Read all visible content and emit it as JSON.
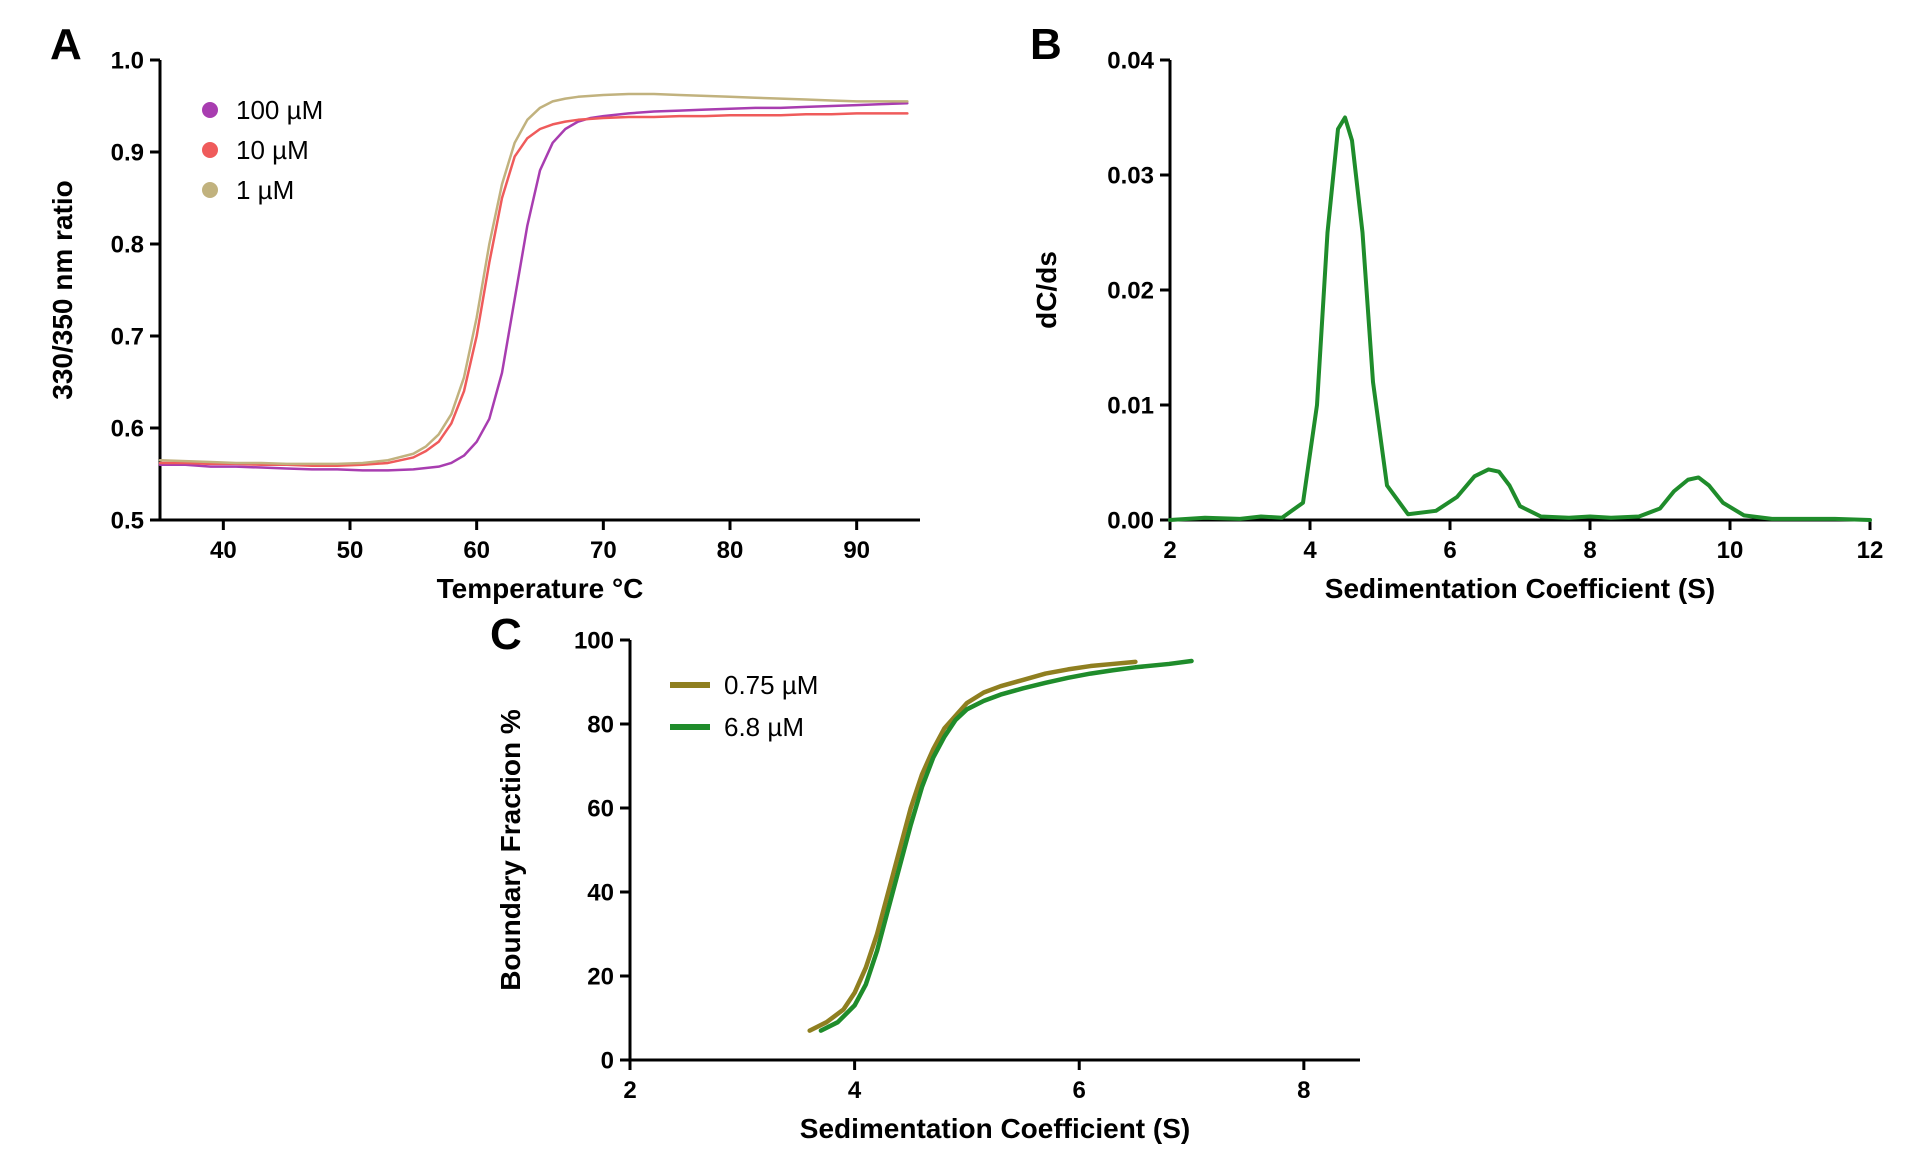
{
  "panelA": {
    "label": "A",
    "type": "line",
    "xlabel": "Temperature °C",
    "ylabel": "330/350 nm ratio",
    "label_fontsize": 28,
    "tick_fontsize": 24,
    "xlim": [
      35,
      95
    ],
    "ylim": [
      0.5,
      1.0
    ],
    "xticks": [
      40,
      50,
      60,
      70,
      80,
      90
    ],
    "yticks": [
      0.5,
      0.6,
      0.7,
      0.8,
      0.9,
      1.0
    ],
    "background_color": "#ffffff",
    "axis_color": "#000000",
    "line_width": 2.5,
    "legend": {
      "items": [
        {
          "label": "100 µM",
          "color": "#a83db0"
        },
        {
          "label": "10 µM",
          "color": "#ef5b5b"
        },
        {
          "label": "1 µM",
          "color": "#c1b27e"
        }
      ],
      "marker": "dot",
      "marker_size": 8,
      "fontsize": 26
    },
    "series": [
      {
        "name": "100 µM",
        "color": "#a83db0",
        "x": [
          35,
          37,
          39,
          41,
          43,
          45,
          47,
          49,
          51,
          53,
          55,
          57,
          58,
          59,
          60,
          61,
          62,
          63,
          64,
          65,
          66,
          67,
          68,
          69,
          70,
          72,
          74,
          76,
          78,
          80,
          82,
          84,
          86,
          88,
          90,
          92,
          94
        ],
        "y": [
          0.56,
          0.56,
          0.558,
          0.558,
          0.557,
          0.556,
          0.555,
          0.555,
          0.554,
          0.554,
          0.555,
          0.558,
          0.562,
          0.57,
          0.585,
          0.61,
          0.66,
          0.74,
          0.82,
          0.88,
          0.91,
          0.925,
          0.933,
          0.937,
          0.939,
          0.942,
          0.944,
          0.945,
          0.946,
          0.947,
          0.948,
          0.948,
          0.949,
          0.95,
          0.951,
          0.952,
          0.953
        ]
      },
      {
        "name": "10 µM",
        "color": "#ef5b5b",
        "x": [
          35,
          37,
          39,
          41,
          43,
          45,
          47,
          49,
          51,
          53,
          55,
          56,
          57,
          58,
          59,
          60,
          61,
          62,
          63,
          64,
          65,
          66,
          67,
          68,
          69,
          70,
          72,
          74,
          76,
          78,
          80,
          82,
          84,
          86,
          88,
          90,
          92,
          94
        ],
        "y": [
          0.562,
          0.562,
          0.561,
          0.561,
          0.56,
          0.56,
          0.559,
          0.559,
          0.56,
          0.562,
          0.568,
          0.575,
          0.585,
          0.605,
          0.64,
          0.7,
          0.78,
          0.85,
          0.895,
          0.915,
          0.925,
          0.93,
          0.933,
          0.935,
          0.936,
          0.937,
          0.938,
          0.938,
          0.939,
          0.939,
          0.94,
          0.94,
          0.94,
          0.941,
          0.941,
          0.942,
          0.942,
          0.942
        ]
      },
      {
        "name": "1 µM",
        "color": "#c1b27e",
        "x": [
          35,
          37,
          39,
          41,
          43,
          45,
          47,
          49,
          51,
          53,
          55,
          56,
          57,
          58,
          59,
          60,
          61,
          62,
          63,
          64,
          65,
          66,
          67,
          68,
          69,
          70,
          72,
          74,
          76,
          78,
          80,
          82,
          84,
          86,
          88,
          90,
          92,
          94
        ],
        "y": [
          0.565,
          0.564,
          0.563,
          0.562,
          0.562,
          0.561,
          0.561,
          0.561,
          0.562,
          0.565,
          0.572,
          0.58,
          0.593,
          0.615,
          0.655,
          0.72,
          0.8,
          0.865,
          0.91,
          0.935,
          0.948,
          0.955,
          0.958,
          0.96,
          0.961,
          0.962,
          0.963,
          0.963,
          0.962,
          0.961,
          0.96,
          0.959,
          0.958,
          0.957,
          0.956,
          0.955,
          0.955,
          0.955
        ]
      }
    ]
  },
  "panelB": {
    "label": "B",
    "type": "line",
    "xlabel": "Sedimentation Coefficient (S)",
    "ylabel": "dC/ds",
    "label_fontsize": 28,
    "tick_fontsize": 24,
    "xlim": [
      2,
      12
    ],
    "ylim": [
      0.0,
      0.04
    ],
    "xticks": [
      2,
      4,
      6,
      8,
      10,
      12
    ],
    "yticks": [
      0.0,
      0.01,
      0.02,
      0.03,
      0.04
    ],
    "background_color": "#ffffff",
    "axis_color": "#000000",
    "line_width": 4,
    "series": [
      {
        "name": "dcds",
        "color": "#1f8c2b",
        "x": [
          2.0,
          2.5,
          3.0,
          3.3,
          3.6,
          3.9,
          4.1,
          4.25,
          4.4,
          4.5,
          4.6,
          4.75,
          4.9,
          5.1,
          5.4,
          5.8,
          6.1,
          6.35,
          6.55,
          6.7,
          6.85,
          7.0,
          7.3,
          7.7,
          8.0,
          8.3,
          8.7,
          9.0,
          9.2,
          9.4,
          9.55,
          9.7,
          9.9,
          10.2,
          10.6,
          11.0,
          11.5,
          12.0
        ],
        "y": [
          0.0,
          0.0002,
          0.0001,
          0.0003,
          0.0002,
          0.0015,
          0.01,
          0.025,
          0.034,
          0.035,
          0.033,
          0.025,
          0.012,
          0.003,
          0.0005,
          0.0008,
          0.002,
          0.0038,
          0.0044,
          0.0042,
          0.003,
          0.0012,
          0.0003,
          0.0002,
          0.0003,
          0.0002,
          0.0003,
          0.001,
          0.0025,
          0.0035,
          0.0037,
          0.003,
          0.0015,
          0.0004,
          0.0001,
          0.0001,
          0.0001,
          0.0
        ]
      }
    ]
  },
  "panelC": {
    "label": "C",
    "type": "line",
    "xlabel": "Sedimentation Coefficient (S)",
    "ylabel": "Boundary Fraction %",
    "label_fontsize": 28,
    "tick_fontsize": 24,
    "xlim": [
      2,
      8.5
    ],
    "ylim": [
      0,
      100
    ],
    "xticks": [
      2,
      4,
      6,
      8
    ],
    "yticks": [
      0,
      20,
      40,
      60,
      80,
      100
    ],
    "background_color": "#ffffff",
    "axis_color": "#000000",
    "line_width": 4.5,
    "legend": {
      "items": [
        {
          "label": "0.75 µM",
          "color": "#8f7f20"
        },
        {
          "label": "6.8 µM",
          "color": "#1f8c2b"
        }
      ],
      "marker": "line",
      "marker_size": 40,
      "fontsize": 26
    },
    "series": [
      {
        "name": "0.75 µM",
        "color": "#8f7f20",
        "x": [
          3.6,
          3.75,
          3.9,
          4.0,
          4.1,
          4.2,
          4.3,
          4.4,
          4.5,
          4.6,
          4.7,
          4.8,
          4.9,
          5.0,
          5.15,
          5.3,
          5.5,
          5.7,
          5.9,
          6.1,
          6.3,
          6.5
        ],
        "y": [
          7,
          9,
          12,
          16,
          22,
          30,
          40,
          50,
          60,
          68,
          74,
          79,
          82,
          85,
          87.5,
          89,
          90.5,
          92,
          93,
          93.8,
          94.3,
          94.8
        ]
      },
      {
        "name": "6.8 µM",
        "color": "#1f8c2b",
        "x": [
          3.7,
          3.85,
          4.0,
          4.1,
          4.2,
          4.3,
          4.4,
          4.5,
          4.6,
          4.7,
          4.8,
          4.9,
          5.0,
          5.15,
          5.3,
          5.5,
          5.7,
          5.9,
          6.1,
          6.3,
          6.5,
          6.8,
          7.0
        ],
        "y": [
          7,
          9,
          13,
          18,
          26,
          36,
          46,
          56,
          65,
          72,
          77,
          81,
          83.5,
          85.5,
          87,
          88.5,
          89.8,
          91,
          92,
          92.8,
          93.5,
          94.3,
          95
        ]
      }
    ]
  }
}
